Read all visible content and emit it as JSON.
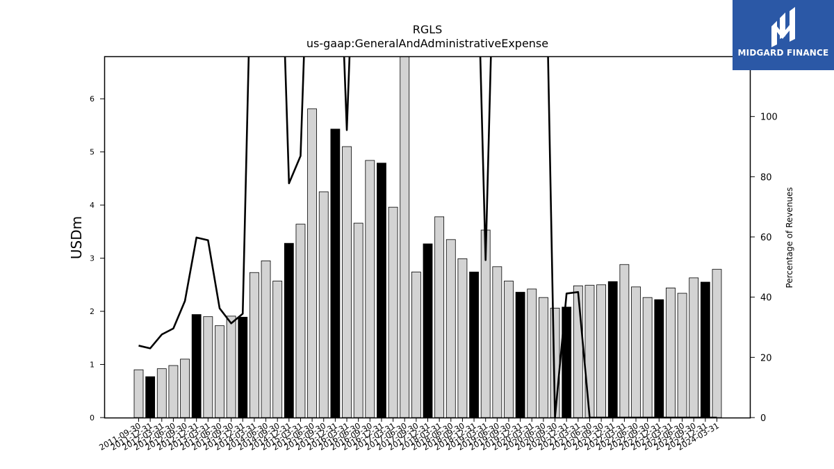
{
  "chart_data": {
    "type": "bar+line",
    "title": "RGLS",
    "subtitle": "us-gaap:GeneralAndAdministrativeExpense",
    "ylabel": "USDm",
    "y2label": "Percentage of Revenues",
    "ylim": [
      0,
      6.8
    ],
    "y2lim": [
      0,
      120
    ],
    "yticks": [
      0,
      1,
      2,
      3,
      4,
      5,
      6
    ],
    "y2ticks": [
      0,
      20,
      40,
      60,
      80,
      100
    ],
    "categories": [
      "2011-09-30",
      "2011-12-31",
      "2012-03-31",
      "2012-06-30",
      "2012-09-30",
      "2012-12-31",
      "2013-03-31",
      "2013-06-30",
      "2013-09-30",
      "2013-12-31",
      "2014-03-31",
      "2014-06-30",
      "2014-09-30",
      "2014-12-31",
      "2015-03-31",
      "2015-06-30",
      "2015-09-30",
      "2015-12-31",
      "2016-03-31",
      "2016-06-30",
      "2016-09-30",
      "2016-12-31",
      "2017-03-31",
      "2017-06-30",
      "2017-09-30",
      "2017-12-31",
      "2018-03-31",
      "2018-06-30",
      "2018-09-30",
      "2018-12-31",
      "2019-03-31",
      "2019-06-30",
      "2019-09-30",
      "2019-12-31",
      "2020-03-31",
      "2020-06-30",
      "2020-09-30",
      "2020-12-31",
      "2021-03-31",
      "2021-06-30",
      "2021-09-30",
      "2021-12-31",
      "2022-03-31",
      "2022-06-30",
      "2022-09-30",
      "2022-12-31",
      "2023-03-31",
      "2023-06-30",
      "2023-09-30",
      "2023-12-31",
      "2024-03-31"
    ],
    "values": [
      0.9,
      0.77,
      0.92,
      0.98,
      1.1,
      1.94,
      1.9,
      1.73,
      1.91,
      1.89,
      2.73,
      2.95,
      2.57,
      3.28,
      3.64,
      5.81,
      4.25,
      5.43,
      5.1,
      3.66,
      4.84,
      4.79,
      3.96,
      7.1,
      2.74,
      3.27,
      3.78,
      3.35,
      2.99,
      2.74,
      3.53,
      2.84,
      2.57,
      2.36,
      2.42,
      2.26,
      2.06,
      2.08,
      2.48,
      2.49,
      2.5,
      2.56,
      2.88,
      2.46,
      2.26,
      2.22,
      2.44,
      2.34,
      2.63,
      2.55,
      2.79
    ],
    "highlight": [
      false,
      true,
      false,
      false,
      false,
      true,
      false,
      false,
      false,
      true,
      false,
      false,
      false,
      true,
      false,
      false,
      false,
      true,
      false,
      false,
      false,
      true,
      false,
      false,
      false,
      true,
      false,
      false,
      false,
      true,
      false,
      false,
      false,
      true,
      false,
      false,
      false,
      true,
      false,
      false,
      false,
      true,
      false,
      false,
      false,
      true,
      false,
      false,
      false,
      true,
      false
    ],
    "percent_of_revenues": [
      23.9,
      23.0,
      27.6,
      29.6,
      38.7,
      59.8,
      58.9,
      36.3,
      31.3,
      34.5,
      200,
      200,
      200,
      77.8,
      86.9,
      200,
      200,
      200,
      95.5,
      200,
      200,
      200,
      200,
      200,
      200,
      200,
      200,
      200,
      200,
      200,
      52.3,
      200,
      200,
      200,
      200,
      200,
      0,
      41.2,
      41.7,
      0,
      0,
      0,
      0,
      0,
      0,
      0,
      0,
      0,
      0,
      0,
      0
    ],
    "bar_color": "#d3d3d3",
    "highlight_color": "#000000",
    "line_color": "#000000"
  },
  "logo": {
    "text": "MIDGARD FINANCE",
    "background": "#2b58a6",
    "icon": "midgard-m-icon"
  }
}
